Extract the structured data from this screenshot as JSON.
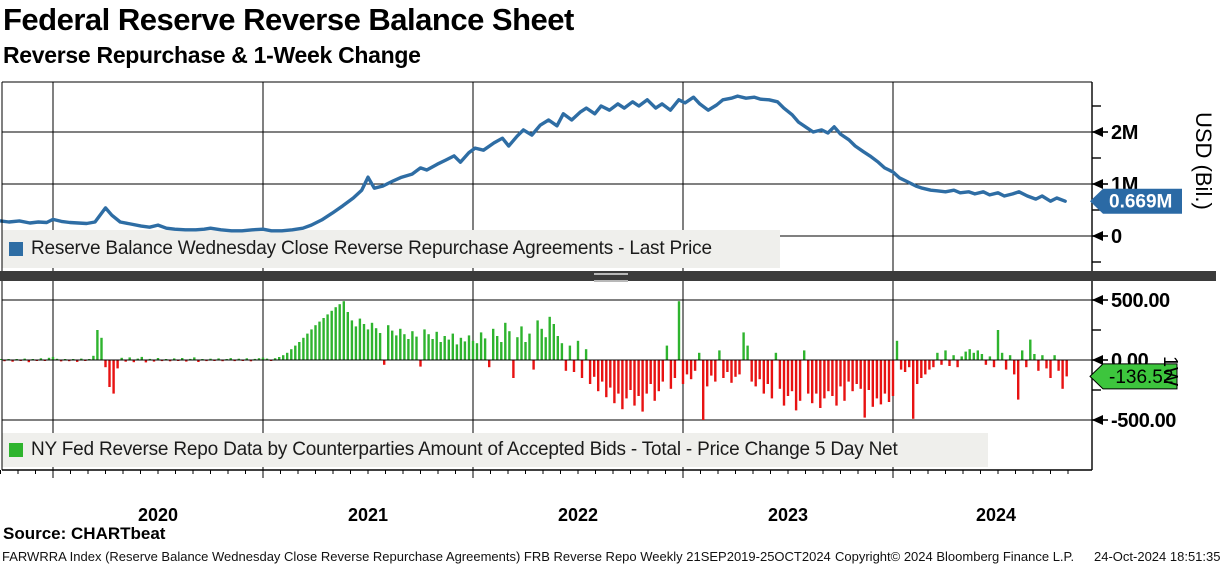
{
  "header": {
    "title": "Federal Reserve Reverse Balance Sheet",
    "subtitle": "Reverse Repurchase & 1-Week Change"
  },
  "chart_data": [
    {
      "type": "line",
      "title": "Reserve Balance Wednesday Close Reverse Repurchase Agreements - Last Price",
      "ylabel": "USD (Bil.)",
      "color": "#2e6da4",
      "ylim": [
        -0.65,
        3.0
      ],
      "yticks": [
        {
          "v": 2,
          "label": "2M"
        },
        {
          "v": 1,
          "label": "1M"
        },
        {
          "v": 0,
          "label": "0"
        }
      ],
      "minor_ticks": [
        2.5,
        1.5,
        0.5,
        -0.5
      ],
      "last_price": 0.669,
      "badge": "0.669M",
      "points": [
        [
          2019.75,
          0.29
        ],
        [
          2019.79,
          0.27
        ],
        [
          2019.84,
          0.29
        ],
        [
          2019.89,
          0.25
        ],
        [
          2019.93,
          0.27
        ],
        [
          2019.97,
          0.26
        ],
        [
          2020.0,
          0.32
        ],
        [
          2020.04,
          0.28
        ],
        [
          2020.08,
          0.26
        ],
        [
          2020.12,
          0.25
        ],
        [
          2020.16,
          0.24
        ],
        [
          2020.2,
          0.27
        ],
        [
          2020.25,
          0.54
        ],
        [
          2020.28,
          0.4
        ],
        [
          2020.32,
          0.27
        ],
        [
          2020.37,
          0.23
        ],
        [
          2020.42,
          0.19
        ],
        [
          2020.46,
          0.17
        ],
        [
          2020.5,
          0.21
        ],
        [
          2020.54,
          0.15
        ],
        [
          2020.58,
          0.13
        ],
        [
          2020.63,
          0.12
        ],
        [
          2020.68,
          0.12
        ],
        [
          2020.72,
          0.13
        ],
        [
          2020.75,
          0.15
        ],
        [
          2020.8,
          0.12
        ],
        [
          2020.85,
          0.1
        ],
        [
          2020.9,
          0.1
        ],
        [
          2020.95,
          0.12
        ],
        [
          2021.0,
          0.13
        ],
        [
          2021.04,
          0.1
        ],
        [
          2021.09,
          0.1
        ],
        [
          2021.14,
          0.12
        ],
        [
          2021.19,
          0.15
        ],
        [
          2021.23,
          0.21
        ],
        [
          2021.28,
          0.31
        ],
        [
          2021.33,
          0.44
        ],
        [
          2021.38,
          0.58
        ],
        [
          2021.43,
          0.73
        ],
        [
          2021.47,
          0.88
        ],
        [
          2021.5,
          1.13
        ],
        [
          2021.53,
          0.92
        ],
        [
          2021.57,
          0.96
        ],
        [
          2021.62,
          1.06
        ],
        [
          2021.66,
          1.13
        ],
        [
          2021.71,
          1.19
        ],
        [
          2021.75,
          1.31
        ],
        [
          2021.78,
          1.27
        ],
        [
          2021.83,
          1.38
        ],
        [
          2021.87,
          1.46
        ],
        [
          2021.91,
          1.54
        ],
        [
          2021.94,
          1.42
        ],
        [
          2021.98,
          1.6
        ],
        [
          2022.01,
          1.69
        ],
        [
          2022.05,
          1.65
        ],
        [
          2022.1,
          1.79
        ],
        [
          2022.14,
          1.88
        ],
        [
          2022.17,
          1.73
        ],
        [
          2022.21,
          1.92
        ],
        [
          2022.24,
          2.04
        ],
        [
          2022.28,
          1.94
        ],
        [
          2022.32,
          2.13
        ],
        [
          2022.36,
          2.23
        ],
        [
          2022.4,
          2.12
        ],
        [
          2022.43,
          2.35
        ],
        [
          2022.47,
          2.23
        ],
        [
          2022.51,
          2.38
        ],
        [
          2022.54,
          2.46
        ],
        [
          2022.58,
          2.35
        ],
        [
          2022.61,
          2.5
        ],
        [
          2022.65,
          2.42
        ],
        [
          2022.69,
          2.54
        ],
        [
          2022.72,
          2.46
        ],
        [
          2022.76,
          2.58
        ],
        [
          2022.79,
          2.5
        ],
        [
          2022.83,
          2.62
        ],
        [
          2022.87,
          2.46
        ],
        [
          2022.9,
          2.54
        ],
        [
          2022.94,
          2.42
        ],
        [
          2022.98,
          2.62
        ],
        [
          2023.01,
          2.56
        ],
        [
          2023.05,
          2.67
        ],
        [
          2023.08,
          2.54
        ],
        [
          2023.12,
          2.42
        ],
        [
          2023.16,
          2.52
        ],
        [
          2023.19,
          2.62
        ],
        [
          2023.23,
          2.65
        ],
        [
          2023.26,
          2.69
        ],
        [
          2023.3,
          2.65
        ],
        [
          2023.34,
          2.67
        ],
        [
          2023.37,
          2.63
        ],
        [
          2023.41,
          2.62
        ],
        [
          2023.45,
          2.58
        ],
        [
          2023.48,
          2.46
        ],
        [
          2023.52,
          2.33
        ],
        [
          2023.55,
          2.19
        ],
        [
          2023.59,
          2.08
        ],
        [
          2023.62,
          2.0
        ],
        [
          2023.66,
          2.04
        ],
        [
          2023.69,
          1.98
        ],
        [
          2023.72,
          2.1
        ],
        [
          2023.75,
          1.96
        ],
        [
          2023.79,
          1.85
        ],
        [
          2023.82,
          1.73
        ],
        [
          2023.86,
          1.62
        ],
        [
          2023.89,
          1.54
        ],
        [
          2023.93,
          1.42
        ],
        [
          2023.96,
          1.31
        ],
        [
          2024.0,
          1.23
        ],
        [
          2024.03,
          1.12
        ],
        [
          2024.07,
          1.04
        ],
        [
          2024.11,
          0.96
        ],
        [
          2024.14,
          0.92
        ],
        [
          2024.18,
          0.88
        ],
        [
          2024.21,
          0.87
        ],
        [
          2024.25,
          0.85
        ],
        [
          2024.29,
          0.88
        ],
        [
          2024.32,
          0.83
        ],
        [
          2024.36,
          0.85
        ],
        [
          2024.39,
          0.81
        ],
        [
          2024.43,
          0.85
        ],
        [
          2024.46,
          0.79
        ],
        [
          2024.5,
          0.83
        ],
        [
          2024.53,
          0.77
        ],
        [
          2024.57,
          0.81
        ],
        [
          2024.6,
          0.85
        ],
        [
          2024.64,
          0.77
        ],
        [
          2024.68,
          0.71
        ],
        [
          2024.71,
          0.77
        ],
        [
          2024.75,
          0.67
        ],
        [
          2024.78,
          0.73
        ],
        [
          2024.82,
          0.669
        ]
      ]
    },
    {
      "type": "bar",
      "title": "NY Fed Reverse Repo Data by Counterparties Amount of Accepted Bids - Total - Price Change 5 Day Net",
      "ylabel": "1W",
      "pos_color": "#2eb42e",
      "neg_color": "#e81212",
      "ylim": [
        -915,
        650
      ],
      "yticks": [
        {
          "v": 500,
          "label": "500.00"
        },
        {
          "v": 0,
          "label": "0.00"
        },
        {
          "v": -500,
          "label": "-500.00"
        }
      ],
      "minor_ticks": [
        250,
        -250
      ],
      "last_change": -136.52,
      "badge": "-136.52",
      "t0": 2019.75,
      "dt": 0.019231,
      "values": [
        8,
        -10,
        5,
        -14,
        7,
        -6,
        12,
        -18,
        6,
        -8,
        14,
        -5,
        18,
        26,
        10,
        -12,
        8,
        -10,
        6,
        -16,
        12,
        -8,
        7,
        35,
        250,
        185,
        -60,
        -225,
        -280,
        -70,
        18,
        -14,
        22,
        -18,
        12,
        26,
        -20,
        9,
        -13,
        17,
        -9,
        7,
        -11,
        13,
        -7,
        17,
        -13,
        9,
        22,
        -17,
        7,
        -9,
        11,
        -7,
        13,
        -10,
        8,
        16,
        -9,
        11,
        -7,
        14,
        -11,
        9,
        15,
        20,
        12,
        -8,
        15,
        25,
        40,
        60,
        90,
        120,
        150,
        185,
        220,
        255,
        290,
        320,
        350,
        380,
        410,
        440,
        465,
        490,
        400,
        330,
        280,
        345,
        300,
        255,
        310,
        265,
        225,
        -40,
        290,
        245,
        205,
        260,
        215,
        175,
        240,
        195,
        -55,
        255,
        215,
        175,
        235,
        150,
        200,
        170,
        220,
        130,
        185,
        155,
        205,
        160,
        140,
        230,
        180,
        -60,
        260,
        200,
        150,
        310,
        240,
        -150,
        190,
        280,
        150,
        220,
        -80,
        330,
        260,
        190,
        360,
        300,
        200,
        140,
        -90,
        120,
        -100,
        160,
        -150,
        90,
        -200,
        -140,
        -260,
        -180,
        -310,
        -230,
        -360,
        -280,
        -410,
        -320,
        -250,
        -380,
        -300,
        -430,
        -280,
        -200,
        -340,
        -260,
        -180,
        120,
        -240,
        -150,
        490,
        -200,
        -120,
        -160,
        -90,
        60,
        -500,
        -220,
        -130,
        -180,
        80,
        -150,
        -100,
        -190,
        -140,
        -120,
        230,
        120,
        -180,
        -220,
        -160,
        -280,
        -200,
        -320,
        60,
        -240,
        -380,
        -300,
        -260,
        -420,
        -340,
        80,
        -280,
        -360,
        -280,
        -400,
        -320,
        -260,
        -300,
        -380,
        -220,
        -340,
        -180,
        -260,
        -200,
        -240,
        -480,
        -250,
        -390,
        -320,
        -370,
        -280,
        -350,
        -300,
        160,
        -80,
        -100,
        -60,
        -490,
        -200,
        -150,
        -120,
        -80,
        -60,
        60,
        -40,
        80,
        -50,
        40,
        -60,
        30,
        70,
        90,
        60,
        80,
        50,
        -40,
        30,
        -60,
        250,
        60,
        -80,
        40,
        -120,
        -330,
        80,
        -60,
        170,
        50,
        -90,
        40,
        -70,
        -150,
        40,
        -90,
        -240,
        -136.52
      ]
    }
  ],
  "x_axis": {
    "years": [
      "2020",
      "2021",
      "2022",
      "2023",
      "2024"
    ],
    "range": [
      2019.72,
      2024.84
    ]
  },
  "source": "Source: CHARTbeat",
  "footer": {
    "left": "FARWRRA Index (Reserve Balance Wednesday Close Reverse Repurchase Agreements) FRB Reverse Repo  Weekly 21SEP2019-25OCT2024",
    "copyright": "Copyright© 2024 Bloomberg Finance L.P.",
    "datetime": "24-Oct-2024 18:51:35"
  }
}
